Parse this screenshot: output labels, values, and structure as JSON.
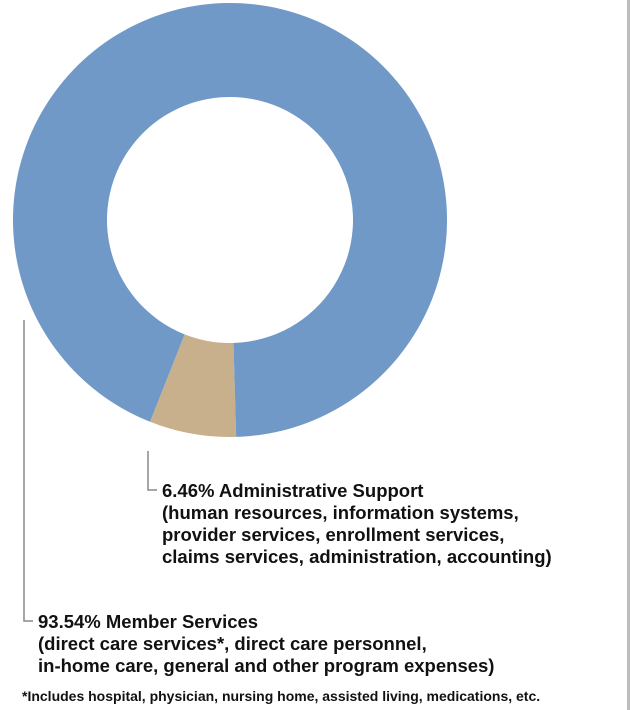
{
  "chart_data": {
    "type": "pie",
    "variant": "donut",
    "slices": [
      {
        "label": "Member Services",
        "value": 93.54,
        "value_label": "93.54%",
        "color": "#7099c7"
      },
      {
        "label": "Administrative Support",
        "value": 6.46,
        "value_label": "6.46%",
        "color": "#c9b08c"
      }
    ],
    "legend": "none",
    "annotations": [
      {
        "slice": "Administrative Support",
        "heading": "6.46% Administrative Support",
        "lines": [
          "(human resources, information systems,",
          "provider services, enrollment services,",
          "claims services, administration, accounting)"
        ]
      },
      {
        "slice": "Member Services",
        "heading": "93.54% Member Services",
        "lines": [
          "(direct care services*, direct care personnel,",
          "in-home care, general and other program expenses)"
        ]
      }
    ],
    "footnote": "*Includes hospital, physician, nursing home, assisted living, medications, etc."
  },
  "colors": {
    "leader_line": "#8a8a8a",
    "divider": "#bdbdbd"
  }
}
